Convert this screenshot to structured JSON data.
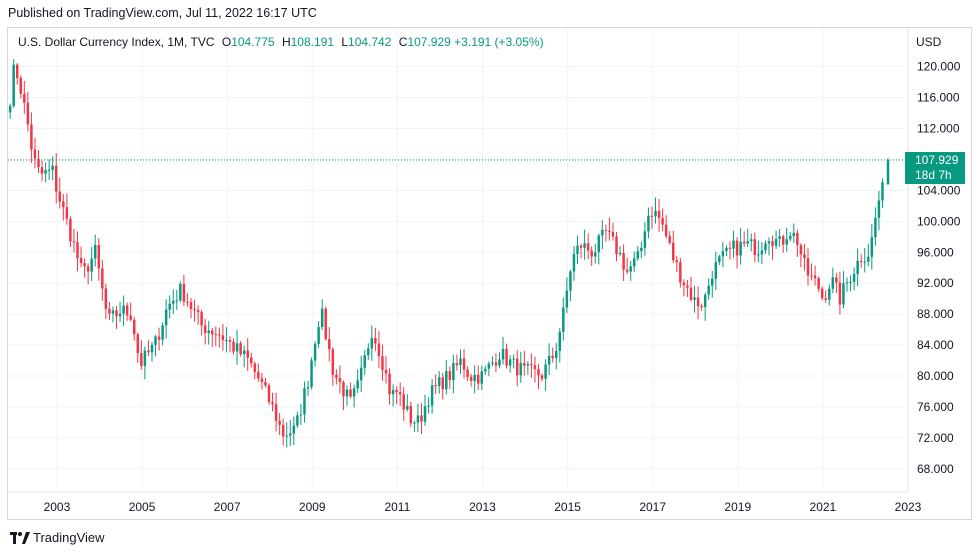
{
  "header": {
    "published": "Published on TradingView.com, Jul 11, 2022 16:17 UTC"
  },
  "legend": {
    "symbol": "U.S. Dollar Currency Index, 1M, TVC",
    "o_label": "O",
    "o_value": "104.775",
    "h_label": "H",
    "h_value": "108.191",
    "l_label": "L",
    "l_value": "104.742",
    "c_label": "C",
    "c_value": "107.929",
    "change": "+3.191 (+3.05%)"
  },
  "currency": "USD",
  "footer": {
    "brand": "TradingView"
  },
  "colors": {
    "up": "#089981",
    "down": "#f23645",
    "grid": "#f0f3fa",
    "price_label": "#089981"
  },
  "chart_data": {
    "type": "candlestick",
    "title": "U.S. Dollar Currency Index, 1M, TVC",
    "timeframe": "1M",
    "x_ticks": [
      "2003",
      "2005",
      "2007",
      "2009",
      "2011",
      "2013",
      "2015",
      "2017",
      "2019",
      "2021",
      "2023"
    ],
    "y_ticks": [
      "68.000",
      "72.000",
      "76.000",
      "80.000",
      "84.000",
      "88.000",
      "92.000",
      "96.000",
      "100.000",
      "104.000",
      "108.000",
      "112.000",
      "116.000",
      "120.000"
    ],
    "ylim": [
      65,
      125
    ],
    "xlim": [
      2001.85,
      2023.0
    ],
    "last_price": "107.929",
    "last_price_countdown": "18d 7h",
    "grid": true,
    "anchors": [
      [
        2001.9,
        116.0
      ],
      [
        2002.0,
        120.0
      ],
      [
        2002.1,
        118.5
      ],
      [
        2002.3,
        113.0
      ],
      [
        2002.45,
        108.0
      ],
      [
        2002.6,
        106.0
      ],
      [
        2002.9,
        106.5
      ],
      [
        2003.0,
        104.0
      ],
      [
        2003.2,
        100.5
      ],
      [
        2003.45,
        96.0
      ],
      [
        2003.6,
        93.0
      ],
      [
        2003.9,
        96.0
      ],
      [
        2004.1,
        90.0
      ],
      [
        2004.2,
        87.0
      ],
      [
        2004.5,
        88.5
      ],
      [
        2004.75,
        88.0
      ],
      [
        2004.95,
        81.5
      ],
      [
        2005.3,
        84.0
      ],
      [
        2005.6,
        89.0
      ],
      [
        2005.9,
        91.0
      ],
      [
        2006.0,
        90.5
      ],
      [
        2006.4,
        86.5
      ],
      [
        2006.8,
        85.5
      ],
      [
        2007.0,
        84.5
      ],
      [
        2007.5,
        82.0
      ],
      [
        2007.8,
        79.0
      ],
      [
        2008.1,
        75.5
      ],
      [
        2008.3,
        72.5
      ],
      [
        2008.6,
        73.0
      ],
      [
        2008.9,
        79.5
      ],
      [
        2009.1,
        86.0
      ],
      [
        2009.2,
        88.5
      ],
      [
        2009.5,
        80.5
      ],
      [
        2009.9,
        76.5
      ],
      [
        2010.1,
        79.0
      ],
      [
        2010.4,
        86.0
      ],
      [
        2010.6,
        83.0
      ],
      [
        2010.85,
        77.5
      ],
      [
        2011.0,
        78.0
      ],
      [
        2011.3,
        74.5
      ],
      [
        2011.5,
        74.0
      ],
      [
        2011.75,
        77.5
      ],
      [
        2012.0,
        79.0
      ],
      [
        2012.3,
        80.5
      ],
      [
        2012.5,
        82.0
      ],
      [
        2012.7,
        80.0
      ],
      [
        2013.0,
        80.0
      ],
      [
        2013.4,
        83.0
      ],
      [
        2013.7,
        81.5
      ],
      [
        2014.0,
        80.5
      ],
      [
        2014.4,
        80.2
      ],
      [
        2014.7,
        83.0
      ],
      [
        2014.9,
        88.0
      ],
      [
        2015.1,
        95.0
      ],
      [
        2015.3,
        97.0
      ],
      [
        2015.6,
        96.0
      ],
      [
        2015.9,
        98.5
      ],
      [
        2016.2,
        96.0
      ],
      [
        2016.4,
        93.5
      ],
      [
        2016.7,
        95.5
      ],
      [
        2016.85,
        100.5
      ],
      [
        2017.0,
        101.5
      ],
      [
        2017.2,
        100.0
      ],
      [
        2017.5,
        95.0
      ],
      [
        2017.7,
        92.5
      ],
      [
        2018.0,
        89.5
      ],
      [
        2018.2,
        89.5
      ],
      [
        2018.4,
        93.5
      ],
      [
        2018.6,
        95.0
      ],
      [
        2018.9,
        96.5
      ],
      [
        2019.2,
        97.0
      ],
      [
        2019.5,
        96.5
      ],
      [
        2019.7,
        98.5
      ],
      [
        2020.0,
        97.0
      ],
      [
        2020.2,
        99.0
      ],
      [
        2020.4,
        97.5
      ],
      [
        2020.6,
        93.5
      ],
      [
        2020.9,
        91.5
      ],
      [
        2021.0,
        90.0
      ],
      [
        2021.2,
        92.5
      ],
      [
        2021.4,
        90.0
      ],
      [
        2021.6,
        92.5
      ],
      [
        2021.9,
        95.5
      ],
      [
        2022.1,
        96.0
      ],
      [
        2022.3,
        102.5
      ],
      [
        2022.45,
        104.7
      ],
      [
        2022.53,
        107.93
      ]
    ],
    "last_candle": {
      "open": 104.775,
      "high": 108.191,
      "low": 104.742,
      "close": 107.929
    }
  }
}
